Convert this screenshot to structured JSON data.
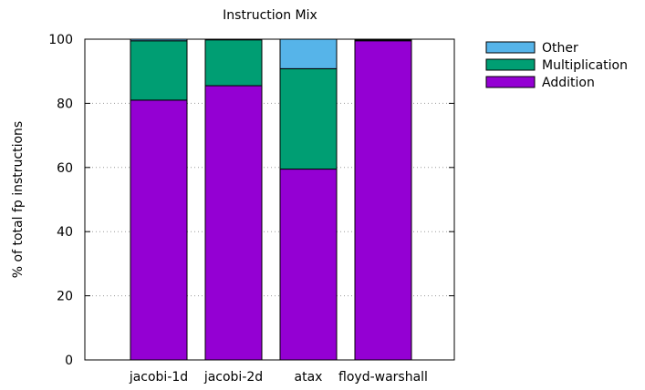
{
  "chart_data": {
    "type": "bar",
    "stacked": true,
    "title": "Instruction Mix",
    "xlabel": "",
    "ylabel": "% of total fp instructions",
    "ylim": [
      0,
      100
    ],
    "yticks": [
      0,
      20,
      40,
      60,
      80,
      100
    ],
    "grid": true,
    "legend_position": "top-right",
    "categories": [
      "jacobi-1d",
      "jacobi-2d",
      "atax",
      "floyd-warshall"
    ],
    "series": [
      {
        "name": "Addition",
        "color": "#9400d3",
        "values": [
          81,
          85.5,
          59.5,
          99.5
        ]
      },
      {
        "name": "Multiplication",
        "color": "#009e73",
        "values": [
          18.5,
          14.3,
          31.3,
          0.3
        ]
      },
      {
        "name": "Other",
        "color": "#56b4e9",
        "values": [
          0.5,
          0.2,
          9.2,
          0.2
        ]
      }
    ]
  }
}
